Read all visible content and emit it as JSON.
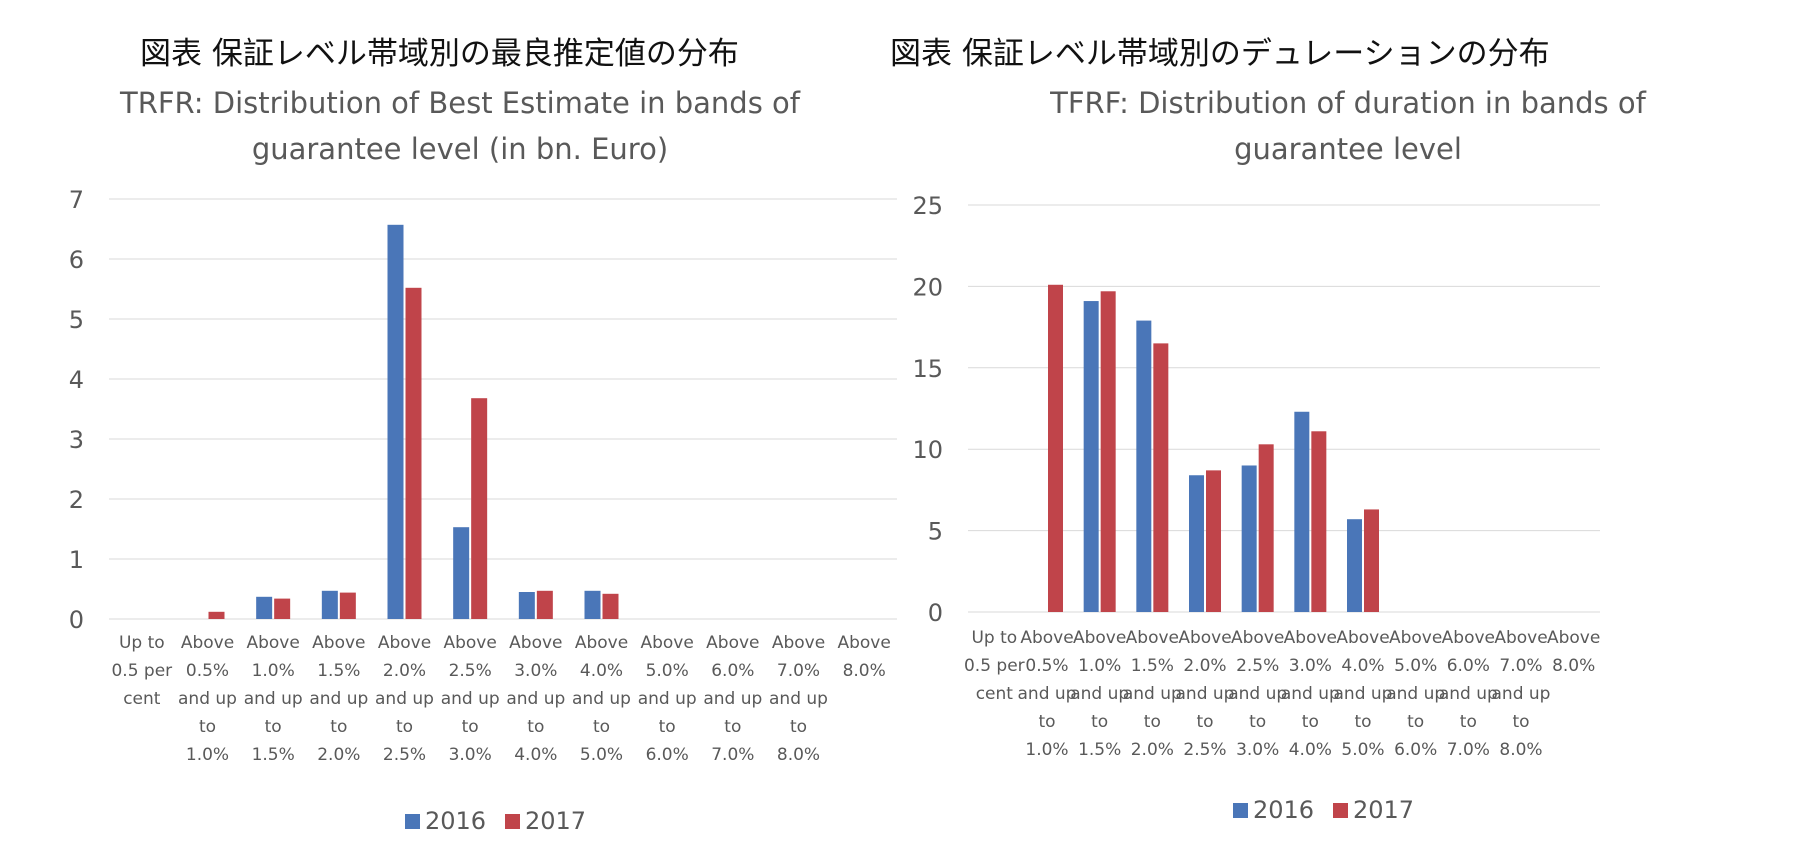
{
  "colors": {
    "s2016": "#4a76b8",
    "s2017": "#c0444a",
    "grid": "#d9d9d9",
    "text": "#595959"
  },
  "left": {
    "jp_title": "図表 保証レベル帯域別の最良推定値の分布",
    "chart_title_line1": "TRFR: Distribution of Best Estimate in bands of",
    "chart_title_line2": "guarantee level (in bn. Euro)"
  },
  "right": {
    "jp_title": "図表 保証レベル帯域別のデュレーションの分布",
    "chart_title_line1": "TFRF: Distribution of duration in bands of",
    "chart_title_line2": "guarantee level"
  },
  "chart_data": [
    {
      "type": "bar",
      "title": "TRFR: Distribution of Best Estimate in bands of guarantee level (in bn. Euro)",
      "xlabel": "",
      "ylabel": "",
      "ylim": [
        0,
        7
      ],
      "yticks": [
        0,
        1,
        2,
        3,
        4,
        5,
        6,
        7
      ],
      "grid": true,
      "legend": "bottom",
      "categories": [
        [
          "Up to",
          "0.5 per",
          "cent"
        ],
        [
          "Above",
          "0.5%",
          "and up",
          "to",
          "1.0%"
        ],
        [
          "Above",
          "1.0%",
          "and up",
          "to",
          "1.5%"
        ],
        [
          "Above",
          "1.5%",
          "and up",
          "to",
          "2.0%"
        ],
        [
          "Above",
          "2.0%",
          "and up",
          "to",
          "2.5%"
        ],
        [
          "Above",
          "2.5%",
          "and up",
          "to",
          "3.0%"
        ],
        [
          "Above",
          "3.0%",
          "and up",
          "to",
          "4.0%"
        ],
        [
          "Above",
          "4.0%",
          "and up",
          "to",
          "5.0%"
        ],
        [
          "Above",
          "5.0%",
          "and up",
          "to",
          "6.0%"
        ],
        [
          "Above",
          "6.0%",
          "and up",
          "to",
          "7.0%"
        ],
        [
          "Above",
          "7.0%",
          "and up",
          "to",
          "8.0%"
        ],
        [
          "Above",
          "8.0%"
        ]
      ],
      "series": [
        {
          "name": "2016",
          "values": [
            0,
            0,
            0.37,
            0.47,
            6.57,
            1.53,
            0.45,
            0.47,
            0,
            0,
            0,
            0
          ]
        },
        {
          "name": "2017",
          "values": [
            0,
            0.12,
            0.34,
            0.44,
            5.52,
            3.68,
            0.47,
            0.42,
            0,
            0,
            0,
            0
          ]
        }
      ]
    },
    {
      "type": "bar",
      "title": "TFRF: Distribution of duration in bands of guarantee level",
      "xlabel": "",
      "ylabel": "",
      "ylim": [
        0,
        25
      ],
      "yticks": [
        0,
        5,
        10,
        15,
        20,
        25
      ],
      "grid": true,
      "legend": "bottom",
      "categories": [
        [
          "Up to",
          "0.5 per",
          "cent"
        ],
        [
          "Above",
          "0.5%",
          "and up",
          "to",
          "1.0%"
        ],
        [
          "Above",
          "1.0%",
          "and up",
          "to",
          "1.5%"
        ],
        [
          "Above",
          "1.5%",
          "and up",
          "to",
          "2.0%"
        ],
        [
          "Above",
          "2.0%",
          "and up",
          "to",
          "2.5%"
        ],
        [
          "Above",
          "2.5%",
          "and up",
          "to",
          "3.0%"
        ],
        [
          "Above",
          "3.0%",
          "and up",
          "to",
          "4.0%"
        ],
        [
          "Above",
          "4.0%",
          "and up",
          "to",
          "5.0%"
        ],
        [
          "Above",
          "5.0%",
          "and up",
          "to",
          "6.0%"
        ],
        [
          "Above",
          "6.0%",
          "and up",
          "to",
          "7.0%"
        ],
        [
          "Above",
          "7.0%",
          "and up",
          "to",
          "8.0%"
        ],
        [
          "Above",
          "8.0%"
        ]
      ],
      "series": [
        {
          "name": "2016",
          "values": [
            0,
            0,
            19.1,
            17.9,
            8.4,
            9.0,
            12.3,
            5.7,
            0,
            0,
            0,
            0
          ]
        },
        {
          "name": "2017",
          "values": [
            0,
            20.1,
            19.7,
            16.5,
            8.7,
            10.3,
            11.1,
            6.3,
            0,
            0,
            0,
            0
          ]
        }
      ]
    }
  ]
}
